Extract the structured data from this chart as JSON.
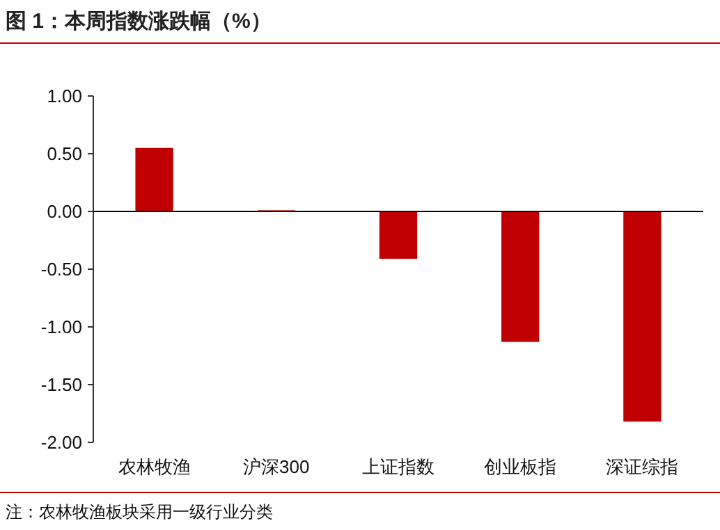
{
  "chart_data": {
    "type": "bar",
    "title": "图 1：本周指数涨跌幅（%）",
    "categories": [
      "农林牧渔",
      "沪深300",
      "上证指数",
      "创业板指",
      "深证综指"
    ],
    "values": [
      0.55,
      0.01,
      -0.41,
      -1.13,
      -1.82
    ],
    "color": "#c00000",
    "ylim": [
      -2,
      1
    ],
    "yticks": [
      {
        "value": 1,
        "label": "1.00"
      },
      {
        "value": 0.5,
        "label": "0.50"
      },
      {
        "value": 0,
        "label": "0.00"
      },
      {
        "value": -0.5,
        "label": "-0.50"
      },
      {
        "value": -1,
        "label": "-1.00"
      },
      {
        "value": -1.5,
        "label": "-1.50"
      },
      {
        "value": -2,
        "label": "-2.00"
      }
    ],
    "annotations": [
      "注：农林牧渔板块采用一级行业分类"
    ]
  }
}
